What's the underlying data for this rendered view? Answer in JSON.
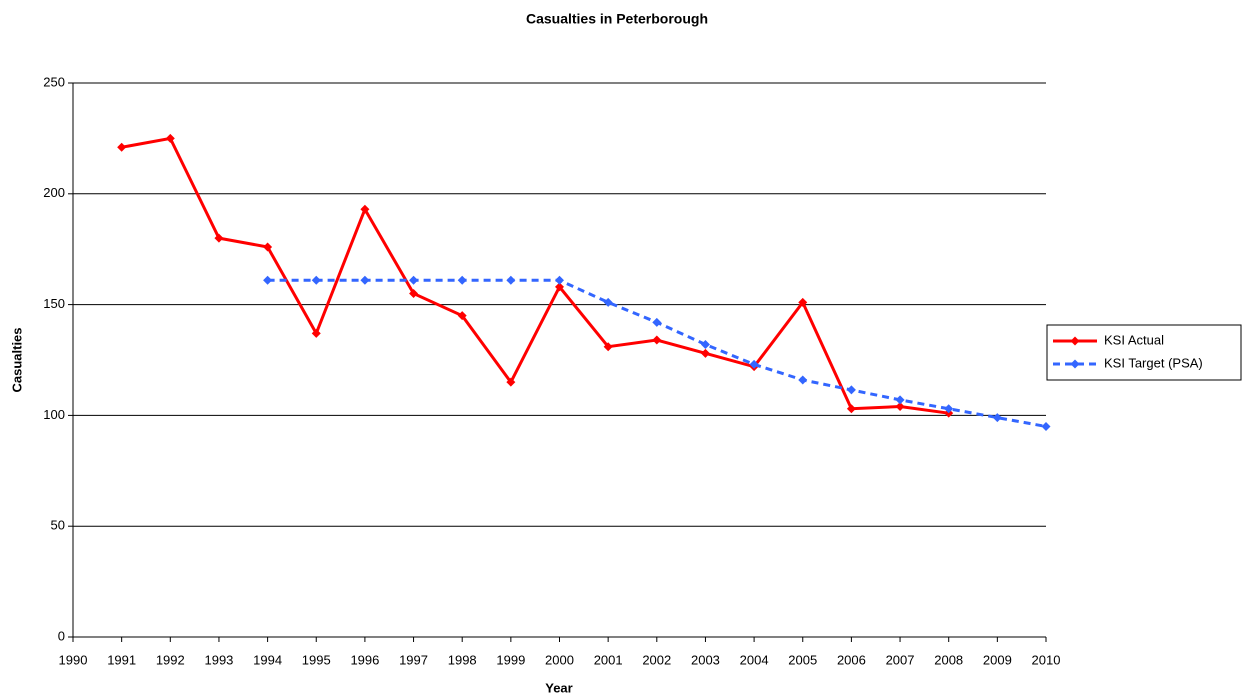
{
  "chart_data": {
    "type": "line",
    "title": "Casualties in Peterborough",
    "x_label": "Year",
    "y_label": "Casualties",
    "x": [
      1991,
      1992,
      1993,
      1994,
      1995,
      1996,
      1997,
      1998,
      1999,
      2000,
      2001,
      2002,
      2003,
      2004,
      2005,
      2006,
      2007,
      2008,
      2009,
      2010
    ],
    "series": [
      {
        "name": "KSI Actual",
        "color": "#ff0000",
        "dashed": false,
        "values": [
          221,
          225,
          180,
          176,
          137,
          193,
          155,
          145,
          115,
          158,
          131,
          134,
          128,
          122,
          151,
          103,
          104,
          101,
          null,
          null
        ]
      },
      {
        "name": "KSI Target (PSA)",
        "color": "#3366ff",
        "dashed": true,
        "values": [
          null,
          null,
          null,
          161,
          161,
          161,
          161,
          161,
          161,
          161,
          151,
          142,
          132,
          123,
          116,
          111.5,
          107,
          103,
          99,
          95
        ]
      }
    ],
    "xlim": [
      1990,
      2010
    ],
    "xticks": [
      1990,
      1991,
      1992,
      1993,
      1994,
      1995,
      1996,
      1997,
      1998,
      1999,
      2000,
      2001,
      2002,
      2003,
      2004,
      2005,
      2006,
      2007,
      2008,
      2009,
      2010
    ],
    "ylim": [
      0,
      250
    ],
    "yticks": [
      0,
      50,
      100,
      150,
      200,
      250
    ],
    "grid": true,
    "legend": "right"
  }
}
